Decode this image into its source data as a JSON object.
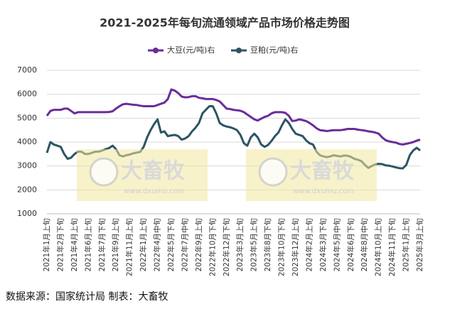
{
  "chart_data": {
    "type": "line",
    "title": "2021-2025年每旬流通领域产品市场价格走势图",
    "source": "数据来源：国家统计局  制表：大畜牧",
    "watermark": {
      "brand": "大畜牧",
      "url": "www.dxumu.com"
    },
    "legend": "top",
    "grid": true,
    "ylim": [
      1000,
      7000
    ],
    "yticks": [
      1000,
      2000,
      3000,
      4000,
      5000,
      6000,
      7000
    ],
    "categories": [
      "2021年1月上旬",
      null,
      null,
      null,
      "2021年2月下旬",
      null,
      null,
      null,
      "2021年4月上旬",
      null,
      null,
      null,
      "2021年6月上旬",
      null,
      null,
      null,
      "2021年7月下旬",
      null,
      null,
      null,
      "2021年9月上旬",
      null,
      null,
      null,
      "2021年11月上旬",
      null,
      null,
      null,
      "2022年1月上旬",
      null,
      null,
      null,
      "2022年4月中旬",
      null,
      null,
      null,
      "2022年5月下旬",
      null,
      null,
      null,
      "2022年7月中旬",
      null,
      null,
      null,
      "2022年9月上旬",
      null,
      null,
      null,
      "2022年10月下旬",
      null,
      null,
      null,
      "2022年12月下旬",
      null,
      null,
      null,
      "2023年3月上旬",
      null,
      null,
      null,
      "2023年5月上旬",
      null,
      null,
      null,
      "2023年8月下旬",
      null,
      null,
      null,
      "2023年10月下旬",
      null,
      null,
      null,
      "2023年12月上旬",
      null,
      null,
      null,
      "2024年2月上旬",
      null,
      null,
      null,
      "2024年3月下旬",
      null,
      null,
      null,
      "2024年5月中旬",
      null,
      null,
      null,
      "2024年6月下旬",
      null,
      null,
      null,
      "2024年8月中旬",
      null,
      null,
      null,
      "2024年10月上旬",
      null,
      null,
      null,
      "2024年11月下旬",
      null,
      null,
      null,
      "2025年1月上旬",
      null,
      null,
      null,
      "2025年3月上旬"
    ],
    "series": [
      {
        "name": "大豆(元/吨)右",
        "color": "#6a2c9a",
        "values": [
          5100,
          5300,
          5350,
          5350,
          5350,
          5400,
          5400,
          5300,
          5200,
          5250,
          5250,
          5250,
          5250,
          5250,
          5250,
          5250,
          5250,
          5250,
          5260,
          5290,
          5400,
          5500,
          5580,
          5600,
          5580,
          5560,
          5550,
          5520,
          5500,
          5500,
          5500,
          5500,
          5550,
          5600,
          5650,
          5800,
          6200,
          6150,
          6050,
          5900,
          5870,
          5880,
          5920,
          5920,
          5850,
          5830,
          5800,
          5800,
          5800,
          5760,
          5700,
          5550,
          5400,
          5380,
          5350,
          5330,
          5310,
          5250,
          5150,
          5050,
          4950,
          4900,
          4980,
          5050,
          5100,
          5200,
          5250,
          5250,
          5250,
          5220,
          5100,
          4880,
          4900,
          4950,
          4920,
          4880,
          4800,
          4700,
          4580,
          4500,
          4480,
          4460,
          4480,
          4500,
          4500,
          4500,
          4520,
          4550,
          4550,
          4550,
          4520,
          4500,
          4480,
          4450,
          4430,
          4400,
          4350,
          4200,
          4080,
          4030,
          4000,
          3980,
          3920,
          3900,
          3930,
          3960,
          4000,
          4060,
          4100
        ]
      },
      {
        "name": "豆粕(元/吨)右",
        "color": "#2c5563",
        "values": [
          3550,
          4000,
          3900,
          3850,
          3800,
          3500,
          3300,
          3350,
          3500,
          3600,
          3600,
          3500,
          3500,
          3550,
          3600,
          3600,
          3650,
          3700,
          3750,
          3850,
          3700,
          3450,
          3400,
          3450,
          3480,
          3530,
          3560,
          3590,
          3800,
          4200,
          4500,
          4750,
          4950,
          4400,
          4450,
          4250,
          4280,
          4300,
          4250,
          4100,
          4150,
          4250,
          4450,
          4600,
          4800,
          5200,
          5350,
          5500,
          5500,
          5200,
          4800,
          4700,
          4650,
          4620,
          4570,
          4500,
          4300,
          3950,
          3850,
          4200,
          4350,
          4200,
          3900,
          3800,
          3880,
          4050,
          4250,
          4400,
          4700,
          4950,
          4800,
          4550,
          4350,
          4300,
          4250,
          4070,
          3950,
          3900,
          3600,
          3450,
          3400,
          3370,
          3400,
          3450,
          3420,
          3400,
          3440,
          3430,
          3380,
          3300,
          3260,
          3200,
          3050,
          2920,
          3000,
          3070,
          3090,
          3080,
          3030,
          3010,
          2980,
          2940,
          2910,
          2900,
          3050,
          3450,
          3650,
          3760,
          3650
        ]
      }
    ]
  }
}
